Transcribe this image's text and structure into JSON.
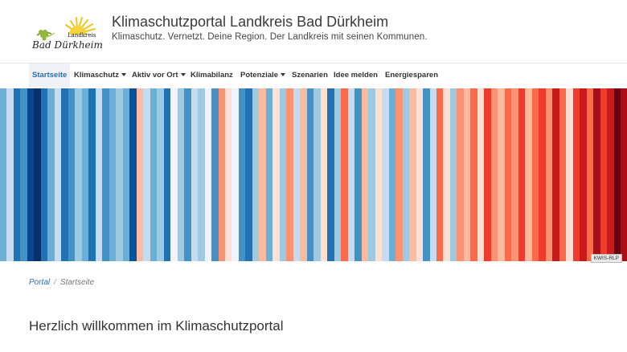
{
  "header": {
    "logo": {
      "line1": "Landkreis",
      "line2": "Bad Dürkheim"
    },
    "title": "Klimaschutzportal Landkreis Bad Dürkheim",
    "subtitle": "Klimaschutz. Vernetzt. Deine Region. Der Landkreis mit seinen Kommunen."
  },
  "nav": {
    "items": [
      {
        "label": "Startseite",
        "dropdown": false,
        "active": true
      },
      {
        "label": "Klimaschutz",
        "dropdown": true
      },
      {
        "label": "Aktiv vor Ort",
        "dropdown": true
      },
      {
        "label": "Klimabilanz",
        "dropdown": false
      },
      {
        "label": "Potenziale",
        "dropdown": true
      },
      {
        "label": "Szenarien",
        "dropdown": false
      },
      {
        "label": "Idee melden",
        "dropdown": false
      },
      {
        "label": "Energiesparen",
        "dropdown": false
      }
    ]
  },
  "banner": {
    "badge": "KWIS-RLP",
    "stripe_colors": [
      "#6baed6",
      "#c6dbef",
      "#2171b5",
      "#4292c6",
      "#084594",
      "#08306b",
      "#2171b5",
      "#6baed6",
      "#c6dbef",
      "#2171b5",
      "#4292c6",
      "#9ecae1",
      "#6baed6",
      "#2171b5",
      "#c6dbef",
      "#4292c6",
      "#6baed6",
      "#9ecae1",
      "#6baed6",
      "#08519c",
      "#fcbba1",
      "#c6dbef",
      "#6baed6",
      "#9ecae1",
      "#2171b5",
      "#eff3ff",
      "#9ecae1",
      "#4292c6",
      "#c6dbef",
      "#9ecae1",
      "#eff3ff",
      "#4292c6",
      "#fc9272",
      "#fee0d2",
      "#eff3ff",
      "#4292c6",
      "#2171b5",
      "#9ecae1",
      "#fcbba1",
      "#6baed6",
      "#fee0d2",
      "#9ecae1",
      "#fc9272",
      "#c6dbef",
      "#fcbba1",
      "#4292c6",
      "#9ecae1",
      "#fee0d2",
      "#2171b5",
      "#9ecae1",
      "#fb6a4a",
      "#c6dbef",
      "#4292c6",
      "#fcbba1",
      "#9ecae1",
      "#fee0d2",
      "#c6dbef",
      "#6baed6",
      "#fc9272",
      "#9ecae1",
      "#fcbba1",
      "#fee0d2",
      "#4292c6",
      "#c6dbef",
      "#fb6a4a",
      "#fee0d2",
      "#9ecae1",
      "#fc9272",
      "#fcbba1",
      "#fb6a4a",
      "#fee0d2",
      "#ef3b2c",
      "#fc9272",
      "#fcbba1",
      "#fb6a4a",
      "#fc9272",
      "#ef3b2c",
      "#fcbba1",
      "#fb6a4a",
      "#ef3b2c",
      "#fc9272",
      "#cb181d",
      "#fb6a4a",
      "#fee0d2",
      "#ef3b2c",
      "#cb181d",
      "#fb6a4a",
      "#a50f15",
      "#ef3b2c",
      "#cb181d",
      "#67000d",
      "#a50f15"
    ]
  },
  "breadcrumb": {
    "home": "Portal",
    "separator": "/",
    "current": "Startseite"
  },
  "main": {
    "heading": "Herzlich willkommen im Klimaschutzportal"
  }
}
